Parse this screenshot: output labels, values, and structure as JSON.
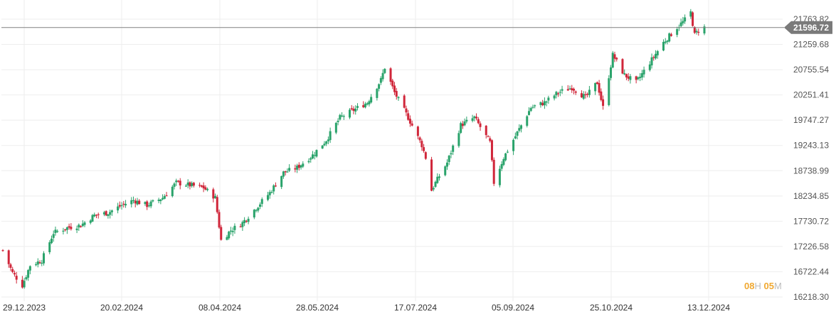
{
  "chart_data": {
    "type": "candlestick",
    "y_ticks": [
      "21763.82",
      "21259.68",
      "20755.54",
      "20251.41",
      "19747.27",
      "19243.13",
      "18738.99",
      "18234.85",
      "17730.72",
      "17226.58",
      "16722.44",
      "16218.30"
    ],
    "x_ticks": [
      "29.12.2023",
      "20.02.2024",
      "08.04.2024",
      "28.05.2024",
      "17.07.2024",
      "05.09.2024",
      "25.10.2024",
      "13.12.2024"
    ],
    "ylim": [
      16218.3,
      21763.82
    ],
    "current_price": "21596.72",
    "grid": true,
    "anchors": [
      [
        "2023-12-29",
        17150
      ],
      [
        "2024-01-03",
        16700
      ],
      [
        "2024-01-08",
        16450
      ],
      [
        "2024-01-12",
        16850
      ],
      [
        "2024-01-18",
        16950
      ],
      [
        "2024-01-24",
        17500
      ],
      [
        "2024-01-31",
        17600
      ],
      [
        "2024-02-07",
        17650
      ],
      [
        "2024-02-14",
        17850
      ],
      [
        "2024-02-21",
        17900
      ],
      [
        "2024-02-28",
        18050
      ],
      [
        "2024-03-05",
        18150
      ],
      [
        "2024-03-12",
        18050
      ],
      [
        "2024-03-20",
        18200
      ],
      [
        "2024-03-27",
        18500
      ],
      [
        "2024-04-03",
        18450
      ],
      [
        "2024-04-10",
        18400
      ],
      [
        "2024-04-16",
        18200
      ],
      [
        "2024-04-19",
        17350
      ],
      [
        "2024-04-24",
        17550
      ],
      [
        "2024-04-30",
        17700
      ],
      [
        "2024-05-07",
        18000
      ],
      [
        "2024-05-14",
        18300
      ],
      [
        "2024-05-21",
        18700
      ],
      [
        "2024-05-28",
        18800
      ],
      [
        "2024-06-05",
        19050
      ],
      [
        "2024-06-12",
        19350
      ],
      [
        "2024-06-19",
        19800
      ],
      [
        "2024-06-26",
        19950
      ],
      [
        "2024-07-03",
        20100
      ],
      [
        "2024-07-10",
        20550
      ],
      [
        "2024-07-12",
        20800
      ],
      [
        "2024-07-17",
        20300
      ],
      [
        "2024-07-24",
        19800
      ],
      [
        "2024-07-31",
        19250
      ],
      [
        "2024-08-02",
        19000
      ],
      [
        "2024-08-05",
        18350
      ],
      [
        "2024-08-07",
        18500
      ],
      [
        "2024-08-13",
        18900
      ],
      [
        "2024-08-20",
        19650
      ],
      [
        "2024-08-27",
        19800
      ],
      [
        "2024-09-04",
        19300
      ],
      [
        "2024-09-06",
        18500
      ],
      [
        "2024-09-11",
        19000
      ],
      [
        "2024-09-18",
        19500
      ],
      [
        "2024-09-25",
        20000
      ],
      [
        "2024-10-02",
        20100
      ],
      [
        "2024-10-09",
        20300
      ],
      [
        "2024-10-16",
        20400
      ],
      [
        "2024-10-23",
        20200
      ],
      [
        "2024-10-29",
        20500
      ],
      [
        "2024-11-01",
        20000
      ],
      [
        "2024-11-06",
        21050
      ],
      [
        "2024-11-12",
        20650
      ],
      [
        "2024-11-18",
        20500
      ],
      [
        "2024-11-25",
        20900
      ],
      [
        "2024-12-02",
        21300
      ],
      [
        "2024-12-09",
        21600
      ],
      [
        "2024-12-13",
        21750
      ],
      [
        "2024-12-16",
        21900
      ],
      [
        "2024-12-18",
        21450
      ],
      [
        "2024-12-20",
        21550
      ],
      [
        "2024-12-23",
        21600
      ]
    ]
  },
  "timer": {
    "hours": "08",
    "hours_unit": "H",
    "minutes": "05",
    "minutes_unit": "M"
  },
  "colors": {
    "up": "#2aa36b",
    "down": "#d0263a",
    "grid": "#eeeeee",
    "current_line": "#808080",
    "current_tag": "#7a7a7a",
    "timer_num": "#f0a830",
    "timer_unit": "#bdbdbd"
  }
}
